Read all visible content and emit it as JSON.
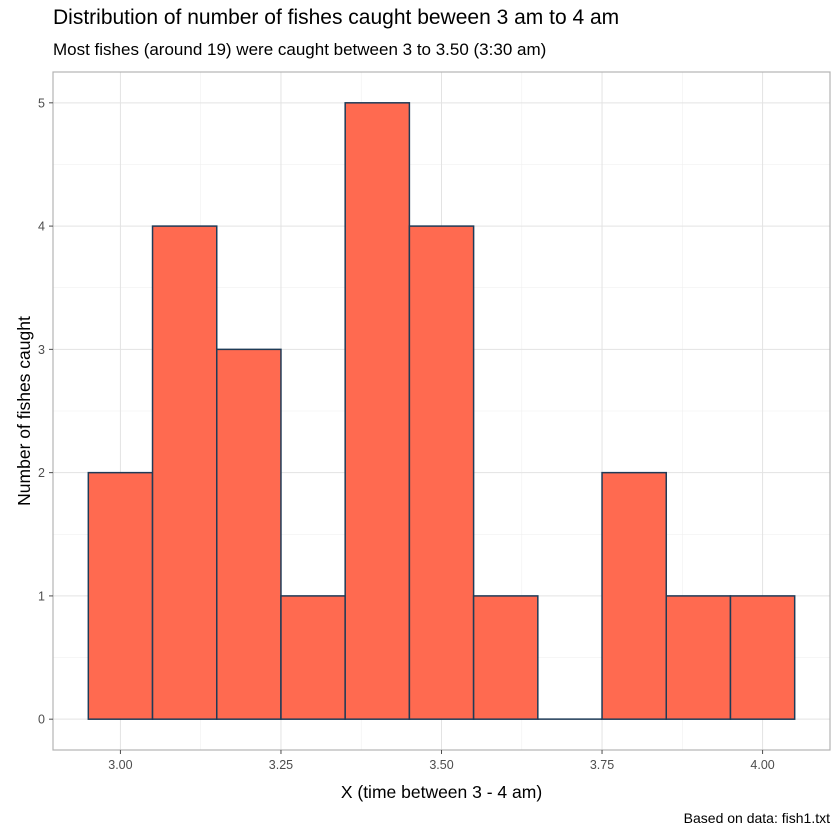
{
  "chart_data": {
    "type": "bar",
    "title": "Distribution of number of fishes caught beween 3 am to 4 am",
    "subtitle": "Most fishes (around 19) were caught between 3 to 3.50 (3:30 am)",
    "caption": "Based on data: fish1.txt",
    "xlabel": "X (time between 3 - 4 am)",
    "ylabel": "Number of fishes caught",
    "bin_width": 0.1,
    "bins": [
      {
        "x0": 2.95,
        "x1": 3.05,
        "count": 2
      },
      {
        "x0": 3.05,
        "x1": 3.15,
        "count": 4
      },
      {
        "x0": 3.15,
        "x1": 3.25,
        "count": 3
      },
      {
        "x0": 3.25,
        "x1": 3.35,
        "count": 1
      },
      {
        "x0": 3.35,
        "x1": 3.45,
        "count": 5
      },
      {
        "x0": 3.45,
        "x1": 3.55,
        "count": 4
      },
      {
        "x0": 3.55,
        "x1": 3.65,
        "count": 1
      },
      {
        "x0": 3.65,
        "x1": 3.75,
        "count": 0
      },
      {
        "x0": 3.75,
        "x1": 3.85,
        "count": 2
      },
      {
        "x0": 3.85,
        "x1": 3.95,
        "count": 1
      },
      {
        "x0": 3.95,
        "x1": 4.05,
        "count": 1
      }
    ],
    "xlim": [
      2.895,
      4.105
    ],
    "ylim": [
      -0.25,
      5.25
    ],
    "x_ticks": [
      3.0,
      3.25,
      3.5,
      3.75,
      4.0
    ],
    "x_tick_labels": [
      "3.00",
      "3.25",
      "3.50",
      "3.75",
      "4.00"
    ],
    "y_ticks": [
      0,
      1,
      2,
      3,
      4,
      5
    ],
    "y_tick_labels": [
      "0",
      "1",
      "2",
      "3",
      "4",
      "5"
    ],
    "grid": true,
    "bar_fill": "#ff6a50",
    "bar_outline": "#1f3b57"
  }
}
